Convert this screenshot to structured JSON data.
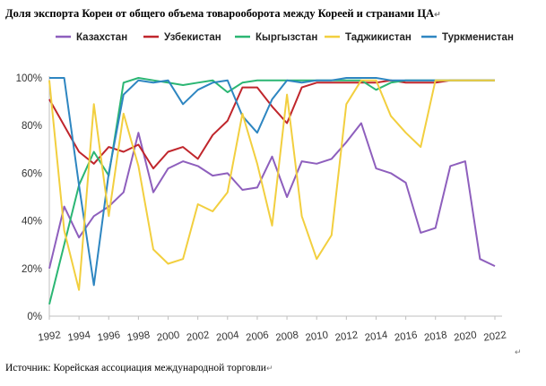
{
  "title": "Доля экспорта Кореи от общего объема товарооборота между Кореей и странами ЦА",
  "paragraph_mark": "↵",
  "source": "Источник: Корейская ассоциация международной торговли",
  "colors": {
    "kazakhstan": "#8e5fbd",
    "uzbekistan": "#c0262c",
    "kyrgyzstan": "#2bb673",
    "tajikistan": "#f2cf3f",
    "turkmenistan": "#2e86c1",
    "axis": "#bfbfbf"
  },
  "chart_data": {
    "type": "line",
    "title": "",
    "xlabel": "",
    "ylabel": "",
    "x": [
      1992,
      1993,
      1994,
      1995,
      1996,
      1997,
      1998,
      1999,
      2000,
      2001,
      2002,
      2003,
      2004,
      2005,
      2006,
      2007,
      2008,
      2009,
      2010,
      2011,
      2012,
      2013,
      2014,
      2015,
      2016,
      2017,
      2018,
      2019,
      2020,
      2021,
      2022
    ],
    "x_ticks": [
      1992,
      1994,
      1996,
      1998,
      2000,
      2002,
      2004,
      2006,
      2008,
      2010,
      2012,
      2014,
      2016,
      2018,
      2020,
      2022
    ],
    "y_ticks": [
      "0%",
      "20%",
      "40%",
      "60%",
      "80%",
      "100%"
    ],
    "ylim": [
      0,
      100
    ],
    "legend_position": "top",
    "series": [
      {
        "name": "Казахстан",
        "color_key": "kazakhstan",
        "values": [
          20,
          46,
          33,
          42,
          46,
          52,
          77,
          52,
          62,
          65,
          63,
          59,
          60,
          53,
          54,
          67,
          50,
          65,
          64,
          66,
          73,
          81,
          62,
          60,
          56,
          35,
          37,
          63,
          65,
          24,
          21
        ]
      },
      {
        "name": "Узбекистан",
        "color_key": "uzbekistan",
        "values": [
          91,
          80,
          69,
          64,
          71,
          69,
          72,
          62,
          69,
          71,
          66,
          76,
          82,
          96,
          96,
          88,
          81,
          96,
          98,
          98,
          98,
          98,
          98,
          99,
          98,
          98,
          98,
          99,
          99,
          99,
          99
        ]
      },
      {
        "name": "Кыргызстан",
        "color_key": "kyrgyzstan",
        "values": [
          5,
          30,
          55,
          69,
          59,
          98,
          100,
          99,
          98,
          97,
          98,
          99,
          94,
          98,
          99,
          99,
          99,
          99,
          99,
          99,
          99,
          99,
          95,
          98,
          99,
          99,
          99,
          99,
          99,
          99,
          99
        ]
      },
      {
        "name": "Таджикистан",
        "color_key": "tajikistan",
        "values": [
          99,
          36,
          11,
          89,
          42,
          85,
          63,
          28,
          22,
          24,
          47,
          44,
          52,
          85,
          64,
          38,
          93,
          42,
          24,
          34,
          89,
          99,
          99,
          84,
          77,
          71,
          99,
          99,
          99,
          99,
          99
        ]
      },
      {
        "name": "Туркменистан",
        "color_key": "turkmenistan",
        "values": [
          100,
          100,
          55,
          13,
          60,
          93,
          99,
          98,
          99,
          89,
          95,
          98,
          99,
          84,
          77,
          91,
          99,
          98,
          99,
          99,
          100,
          100,
          100,
          99,
          99,
          99,
          99,
          99,
          99,
          99,
          99
        ]
      }
    ]
  }
}
